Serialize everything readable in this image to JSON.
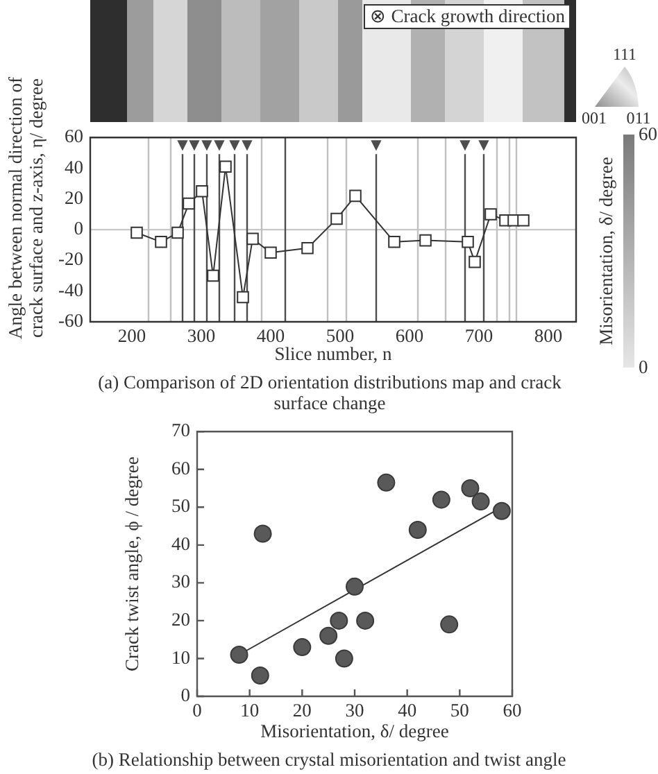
{
  "chart_data": [
    {
      "type": "line",
      "title": "(a) Comparison of 2D orientation distributions map and crack surface change",
      "xlabel": "Slice number, n",
      "ylabel": "Angle between normal direction of crack surface and z-axis, η/ degree",
      "x": [
        207,
        242,
        266,
        282,
        301,
        317,
        335,
        360,
        374,
        400,
        453,
        495,
        522,
        578,
        623,
        684,
        694,
        717,
        738,
        750,
        764
      ],
      "series": [
        {
          "color": "#333333",
          "values": [
            -2,
            -8,
            -2,
            17,
            25,
            -30,
            41,
            -44,
            -6,
            -15,
            -12,
            7,
            22,
            -8,
            -7,
            -8,
            -21,
            10,
            6,
            6,
            6
          ]
        }
      ],
      "marker": "square",
      "xlim": [
        140,
        840
      ],
      "xticks": [
        200,
        300,
        400,
        500,
        600,
        700,
        800
      ],
      "ylim": [
        -60,
        60
      ],
      "yticks": [
        -60,
        -40,
        -20,
        0,
        20,
        40,
        60
      ],
      "ref_lines": [
        {
          "axis": "y",
          "value": 0,
          "color": "#c8c8c8"
        },
        {
          "axis": "x",
          "value": 224,
          "color": "#c0c0c0"
        },
        {
          "axis": "x",
          "value": 256,
          "color": "#c0c0c0"
        },
        {
          "axis": "x",
          "value": 273,
          "color": "#4d4d4d",
          "label": "▼"
        },
        {
          "axis": "x",
          "value": 290,
          "color": "#4d4d4d",
          "label": "▼"
        },
        {
          "axis": "x",
          "value": 308,
          "color": "#4d4d4d",
          "label": "▼"
        },
        {
          "axis": "x",
          "value": 326,
          "color": "#4d4d4d",
          "label": "▼"
        },
        {
          "axis": "x",
          "value": 348,
          "color": "#4d4d4d",
          "label": "▼"
        },
        {
          "axis": "x",
          "value": 366,
          "color": "#4d4d4d",
          "label": "▼"
        },
        {
          "axis": "x",
          "value": 387,
          "color": "#c0c0c0"
        },
        {
          "axis": "x",
          "value": 421,
          "color": "#4d4d4d"
        },
        {
          "axis": "x",
          "value": 482,
          "color": "#c0c0c0"
        },
        {
          "axis": "x",
          "value": 509,
          "color": "#c0c0c0"
        },
        {
          "axis": "x",
          "value": 552,
          "color": "#4d4d4d",
          "label": "▼"
        },
        {
          "axis": "x",
          "value": 612,
          "color": "#c0c0c0"
        },
        {
          "axis": "x",
          "value": 652,
          "color": "#c0c0c0"
        },
        {
          "axis": "x",
          "value": 680,
          "color": "#4d4d4d",
          "label": "▼"
        },
        {
          "axis": "x",
          "value": 707,
          "color": "#4d4d4d",
          "label": "▼"
        },
        {
          "axis": "x",
          "value": 726,
          "color": "#c0c0c0"
        },
        {
          "axis": "x",
          "value": 744,
          "color": "#c0c0c0"
        },
        {
          "axis": "x",
          "value": 754,
          "color": "#c0c0c0"
        }
      ],
      "annotations": [
        "⊗ Crack growth direction",
        "111",
        "001",
        "011"
      ],
      "clabel": "Misorientation, δ/ degree",
      "clim": [
        0,
        60
      ],
      "cticks": [
        0,
        60
      ]
    },
    {
      "type": "scatter",
      "title": "(b) Relationship between crystal misorientation and twist angle",
      "xlabel": "Misorientation, δ/ degree",
      "ylabel": "Crack twist angle, ϕ / degree",
      "x": [
        8,
        12,
        12.5,
        20,
        25,
        27,
        28,
        30,
        32,
        36,
        42,
        46.5,
        48,
        52,
        54,
        58
      ],
      "series": [
        {
          "color": "#595959",
          "values": [
            11,
            5.5,
            43,
            13,
            16,
            20,
            10,
            29,
            20,
            56.5,
            44,
            52,
            19,
            55,
            51.5,
            49
          ]
        },
        {
          "type": "line",
          "color": "#333333",
          "x": [
            8,
            58
          ],
          "values": [
            11,
            50
          ],
          "marker": "none"
        }
      ],
      "marker": "circle",
      "xlim": [
        0,
        60
      ],
      "xticks": [
        0,
        10,
        20,
        30,
        40,
        50,
        60
      ],
      "ylim": [
        0,
        70
      ],
      "yticks": [
        0,
        10,
        20,
        30,
        40,
        50,
        60,
        70
      ]
    }
  ]
}
